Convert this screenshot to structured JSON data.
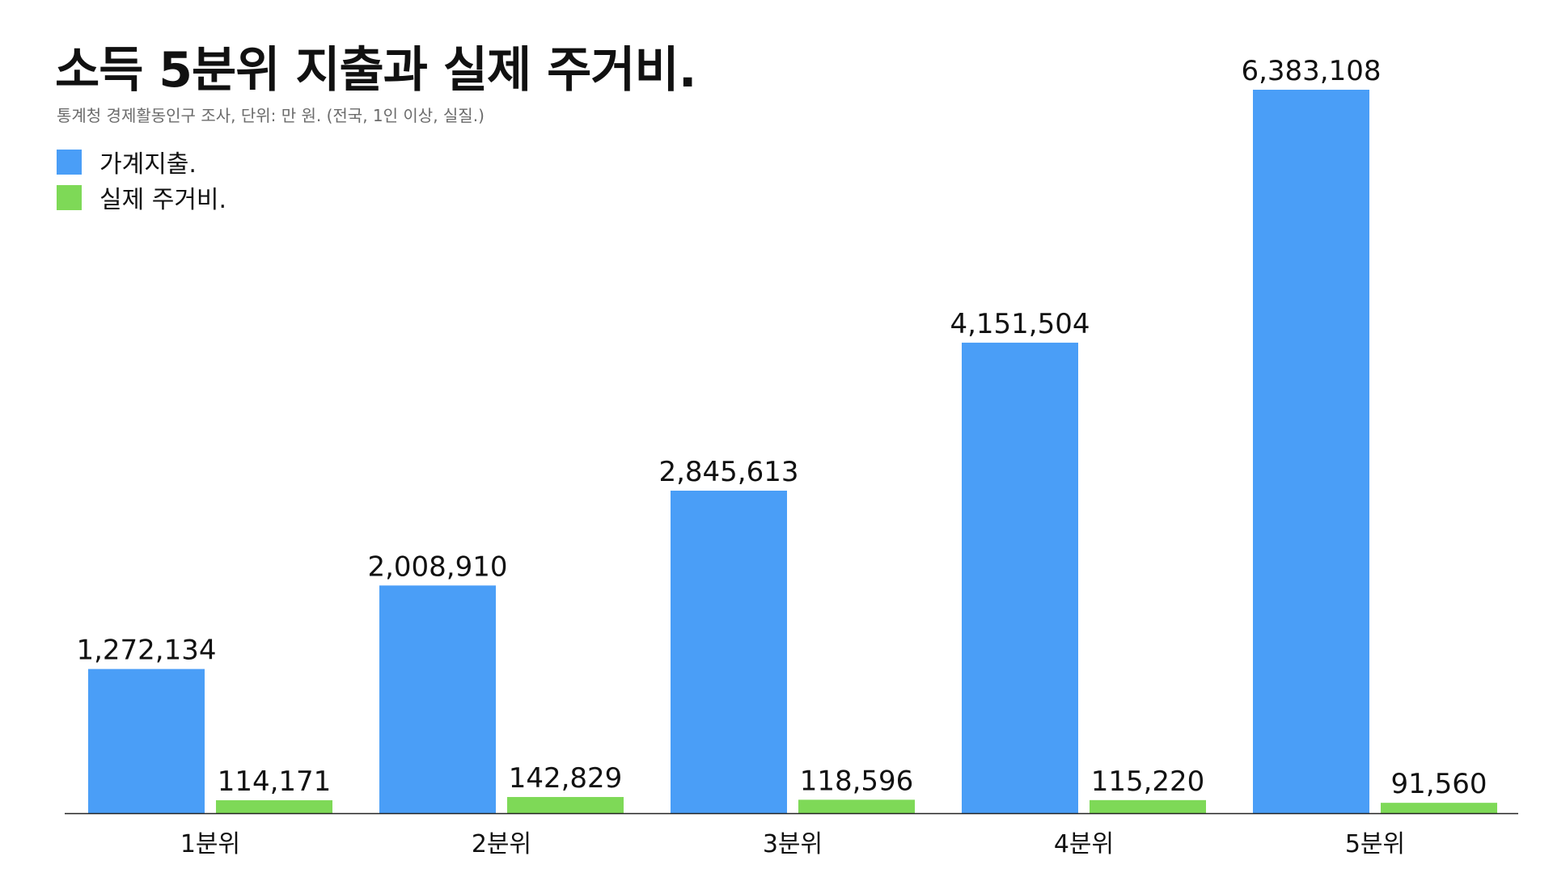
{
  "chart_data": {
    "type": "bar",
    "title": "소득 5분위 지출과 실제 주거비.",
    "subtitle": "통계청 경제활동인구 조사, 단위: 만 원. (전국, 1인 이상, 실질.)",
    "categories": [
      "1분위",
      "2분위",
      "3분위",
      "4분위",
      "5분위"
    ],
    "series": [
      {
        "name": "가계지출.",
        "color": "#4A9EF7",
        "values": [
          1272134,
          2008910,
          2845613,
          4151504,
          6383108
        ],
        "labels": [
          "1,272,134",
          "2,008,910",
          "2,845,613",
          "4,151,504",
          "6,383,108"
        ]
      },
      {
        "name": "실제 주거비.",
        "color": "#7ED957",
        "values": [
          114171,
          142829,
          118596,
          115220,
          91560
        ],
        "labels": [
          "114,171",
          "142,829",
          "118,596",
          "115,220",
          "91,560"
        ]
      }
    ],
    "ylim": [
      0,
      6383108
    ],
    "grid": false,
    "legend_position": "top-left",
    "axis_line_color": "#222222"
  }
}
